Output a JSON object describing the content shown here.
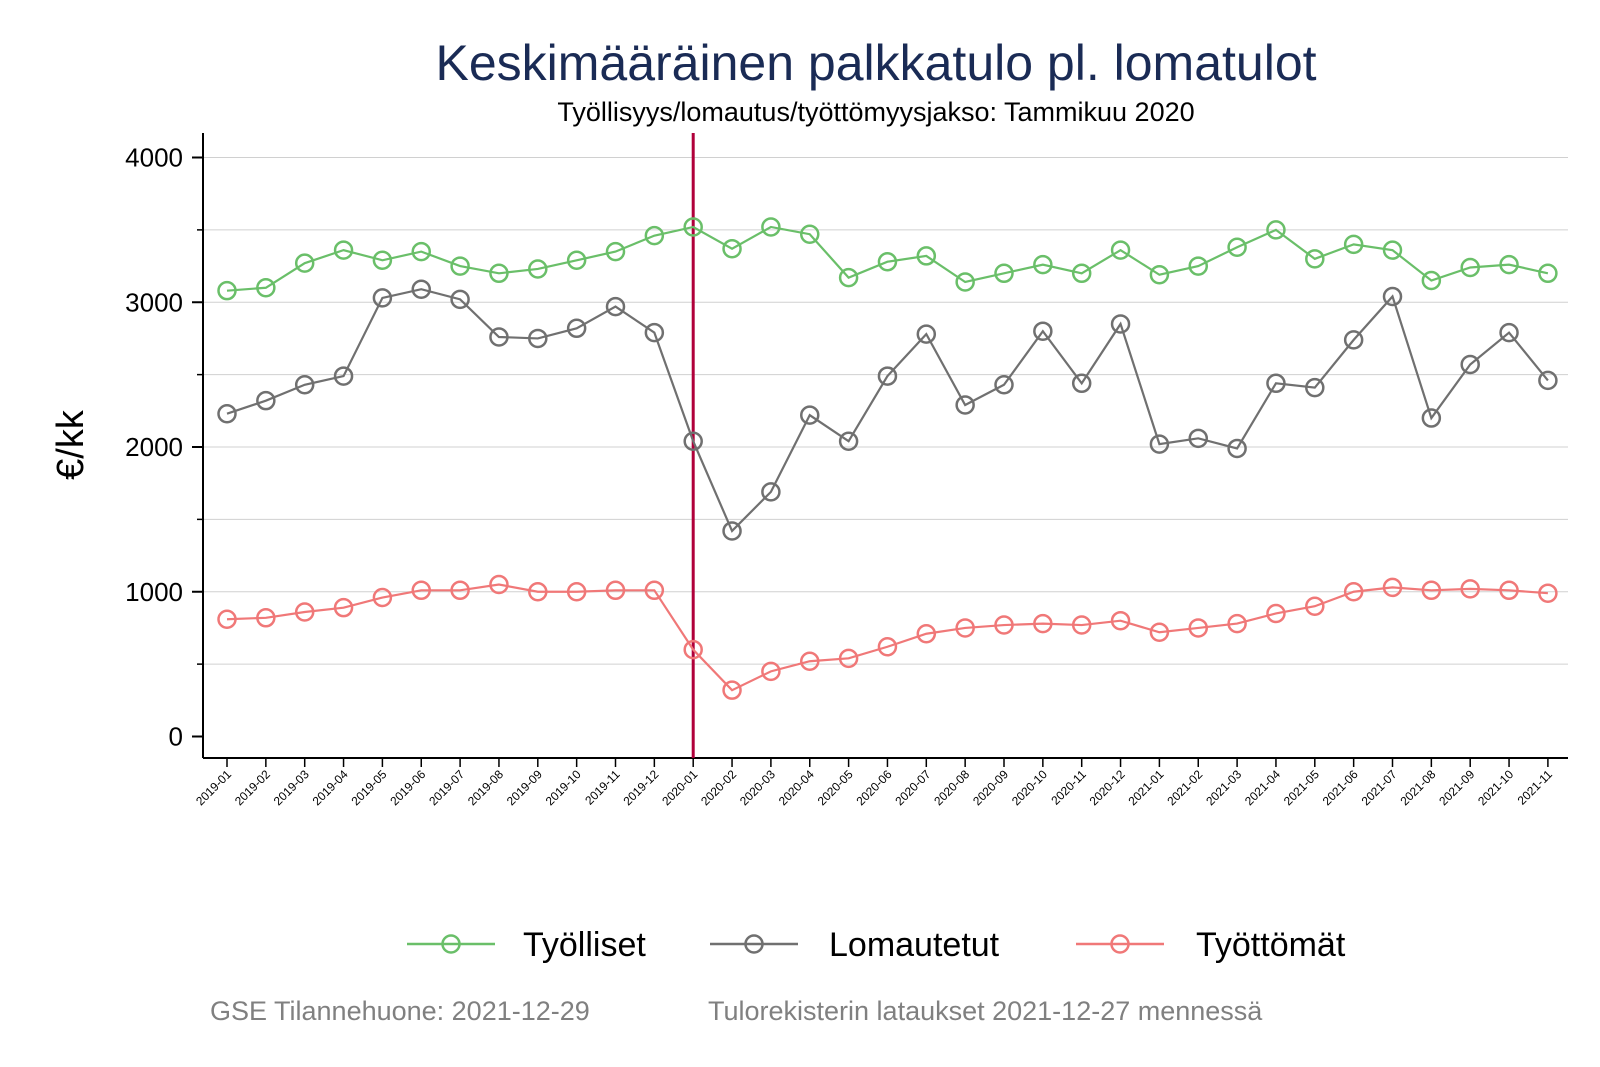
{
  "chart_data": {
    "type": "line",
    "title": "Keskimääräinen palkkatulo pl. lomatulot",
    "subtitle": "Työllisyys/lomautus/työttömyysjakso: Tammikuu 2020",
    "ylabel": "€/kk",
    "xlabel": "",
    "ylim": [
      -150,
      4150
    ],
    "yticks": [
      0,
      1000,
      2000,
      3000,
      4000
    ],
    "y_minor_ticks": [
      500,
      1500,
      2500,
      3500
    ],
    "grid": "horizontal",
    "legend_position": "bottom",
    "reference_line": {
      "x": "2020-01",
      "color": "#b0003a"
    },
    "x": [
      "2019-01",
      "2019-02",
      "2019-03",
      "2019-04",
      "2019-05",
      "2019-06",
      "2019-07",
      "2019-08",
      "2019-09",
      "2019-10",
      "2019-11",
      "2019-12",
      "2020-01",
      "2020-02",
      "2020-03",
      "2020-04",
      "2020-05",
      "2020-06",
      "2020-07",
      "2020-08",
      "2020-09",
      "2020-10",
      "2020-11",
      "2020-12",
      "2021-01",
      "2021-02",
      "2021-03",
      "2021-04",
      "2021-05",
      "2021-06",
      "2021-07",
      "2021-08",
      "2021-09",
      "2021-10",
      "2021-11"
    ],
    "series": [
      {
        "name": "Työlliset",
        "color": "#6abf69",
        "values": [
          3080,
          3100,
          3270,
          3360,
          3290,
          3350,
          3250,
          3200,
          3230,
          3290,
          3350,
          3460,
          3520,
          3370,
          3520,
          3470,
          3170,
          3280,
          3320,
          3140,
          3200,
          3260,
          3200,
          3360,
          3190,
          3250,
          3380,
          3500,
          3300,
          3400,
          3360,
          3150,
          3240,
          3260,
          3200
        ]
      },
      {
        "name": "Lomautetut",
        "color": "#707070",
        "values": [
          2230,
          2320,
          2430,
          2490,
          3030,
          3090,
          3020,
          2760,
          2750,
          2820,
          2970,
          2790,
          2040,
          1420,
          1690,
          2220,
          2040,
          2490,
          2780,
          2290,
          2430,
          2800,
          2440,
          2850,
          2020,
          2060,
          1990,
          2440,
          2410,
          2740,
          3040,
          2200,
          2570,
          2790,
          2460
        ]
      },
      {
        "name": "Työttömät",
        "color": "#f07878",
        "values": [
          810,
          820,
          860,
          890,
          960,
          1010,
          1010,
          1050,
          1000,
          1000,
          1010,
          1010,
          600,
          320,
          450,
          520,
          540,
          620,
          710,
          750,
          770,
          780,
          770,
          800,
          720,
          750,
          780,
          850,
          900,
          1000,
          1030,
          1010,
          1020,
          1010,
          990
        ]
      }
    ]
  },
  "footer": {
    "left": "GSE Tilannehuone: 2021-12-29",
    "right": "Tulorekisterin lataukset 2021-12-27 mennessä"
  }
}
